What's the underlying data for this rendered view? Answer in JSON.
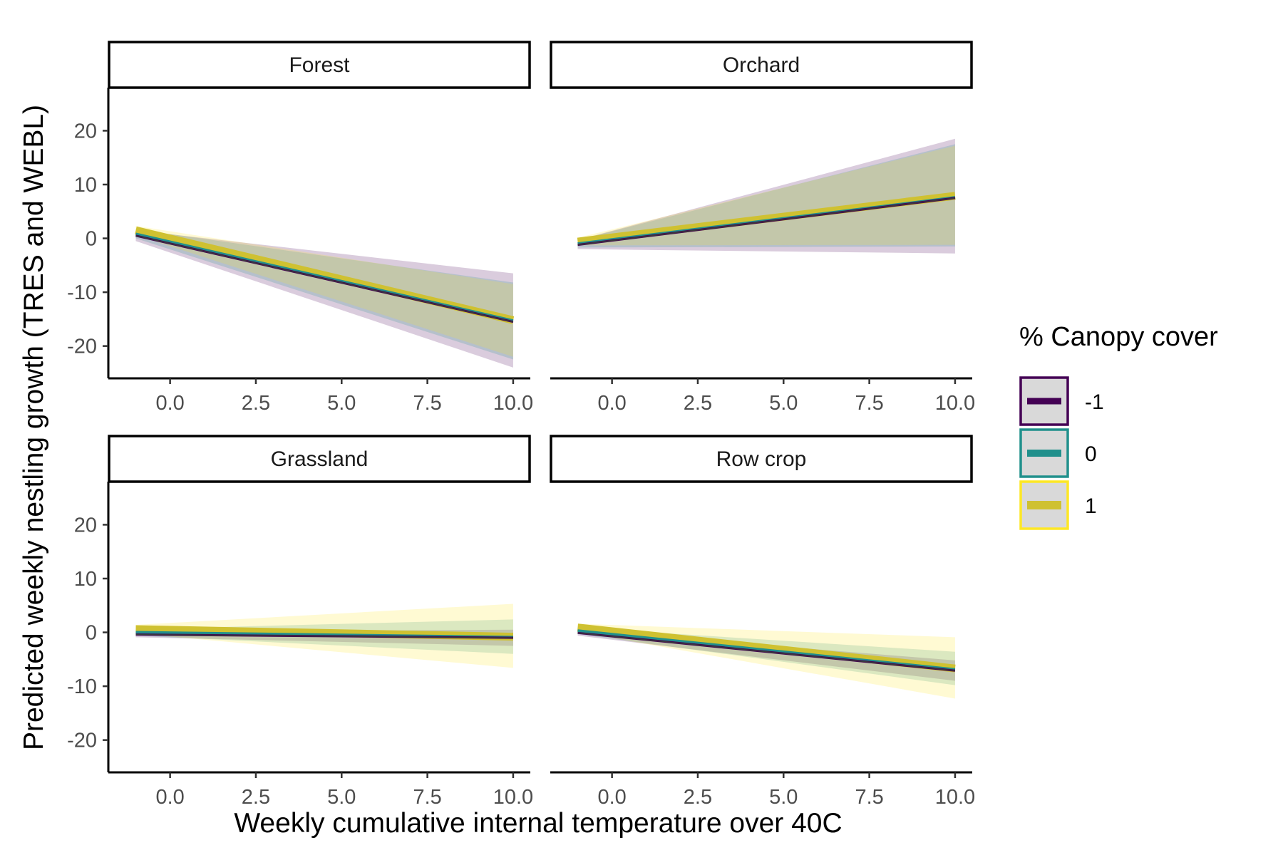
{
  "chart_data": {
    "type": "line",
    "xlabel": "Weekly cumulative internal temperature over 40C",
    "ylabel": "Predicted weekly nestling growth (TRES and WEBL)",
    "xlim": [
      -1.0,
      10.0
    ],
    "ylim": [
      -26,
      28
    ],
    "x_ticks": [
      "0.0",
      "2.5",
      "5.0",
      "7.5",
      "10.0"
    ],
    "x_tick_values": [
      0,
      2.5,
      5,
      7.5,
      10
    ],
    "y_ticks": [
      "20",
      "10",
      "0",
      "-10",
      "-20"
    ],
    "y_tick_values": [
      20,
      10,
      0,
      -10,
      -20
    ],
    "grid": false,
    "legend": {
      "title": "% Canopy cover",
      "position": "right",
      "entries": [
        {
          "label": "-1",
          "color": "#440154"
        },
        {
          "label": "0",
          "color": "#21908C"
        },
        {
          "label": "1",
          "color": "#FDE725"
        }
      ]
    },
    "panels": [
      {
        "label": "Forest",
        "series": [
          {
            "name": "-1",
            "color": "#440154",
            "x": [
              -1,
              10
            ],
            "y": [
              0.5,
              -15.5
            ],
            "lower": [
              -0.5,
              -24.0
            ],
            "upper": [
              1.5,
              -6.5
            ]
          },
          {
            "name": "0",
            "color": "#21908C",
            "x": [
              -1,
              10
            ],
            "y": [
              0.8,
              -15.3
            ],
            "lower": [
              0.0,
              -22.5
            ],
            "upper": [
              1.7,
              -8.2
            ]
          },
          {
            "name": "1",
            "color": "#FDE725",
            "x": [
              -1,
              10
            ],
            "y": [
              1.5,
              -15.2
            ],
            "lower": [
              0.6,
              -22.0
            ],
            "upper": [
              2.3,
              -8.5
            ]
          }
        ]
      },
      {
        "label": "Orchard",
        "series": [
          {
            "name": "-1",
            "color": "#440154",
            "x": [
              -1,
              10
            ],
            "y": [
              -1.2,
              7.5
            ],
            "lower": [
              -2.0,
              -2.8
            ],
            "upper": [
              -0.3,
              18.5
            ]
          },
          {
            "name": "0",
            "color": "#21908C",
            "x": [
              -1,
              10
            ],
            "y": [
              -1.0,
              7.6
            ],
            "lower": [
              -1.7,
              -1.5
            ],
            "upper": [
              -0.3,
              17.5
            ]
          },
          {
            "name": "1",
            "color": "#FDE725",
            "x": [
              -1,
              10
            ],
            "y": [
              -0.6,
              7.9
            ],
            "lower": [
              -1.3,
              -1.2
            ],
            "upper": [
              0.1,
              17.2
            ]
          }
        ]
      },
      {
        "label": "Grassland",
        "series": [
          {
            "name": "-1",
            "color": "#440154",
            "x": [
              -1,
              10
            ],
            "y": [
              -0.4,
              -1.0
            ],
            "lower": [
              -0.9,
              -2.5
            ],
            "upper": [
              0.1,
              0.5
            ]
          },
          {
            "name": "0",
            "color": "#21908C",
            "x": [
              -1,
              10
            ],
            "y": [
              0.0,
              -0.9
            ],
            "lower": [
              -0.6,
              -4.0
            ],
            "upper": [
              0.6,
              2.4
            ]
          },
          {
            "name": "1",
            "color": "#FDE725",
            "x": [
              -1,
              10
            ],
            "y": [
              0.6,
              -0.8
            ],
            "lower": [
              -0.2,
              -6.6
            ],
            "upper": [
              1.4,
              5.3
            ]
          }
        ]
      },
      {
        "label": "Row crop",
        "series": [
          {
            "name": "-1",
            "color": "#440154",
            "x": [
              -1,
              10
            ],
            "y": [
              -0.1,
              -7.1
            ],
            "lower": [
              -0.6,
              -9.0
            ],
            "upper": [
              0.4,
              -5.2
            ]
          },
          {
            "name": "0",
            "color": "#21908C",
            "x": [
              -1,
              10
            ],
            "y": [
              0.3,
              -6.9
            ],
            "lower": [
              -0.3,
              -9.8
            ],
            "upper": [
              0.9,
              -3.6
            ]
          },
          {
            "name": "1",
            "color": "#FDE725",
            "x": [
              -1,
              10
            ],
            "y": [
              0.9,
              -6.7
            ],
            "lower": [
              0.1,
              -12.3
            ],
            "upper": [
              1.6,
              -0.9
            ]
          }
        ]
      }
    ]
  }
}
